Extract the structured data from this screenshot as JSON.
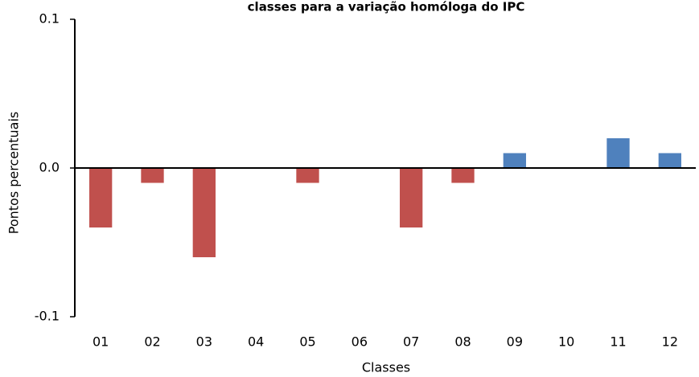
{
  "chart_data": {
    "type": "bar",
    "title": "classes para a variação homóloga do IPC",
    "x_label": "Classes",
    "y_label": "Pontos percentuais",
    "categories": [
      "01",
      "02",
      "03",
      "04",
      "05",
      "06",
      "07",
      "08",
      "09",
      "10",
      "11",
      "12"
    ],
    "values": [
      -0.04,
      -0.01,
      -0.06,
      0,
      -0.01,
      0,
      -0.04,
      -0.01,
      0.01,
      0,
      0.02,
      0.01
    ],
    "colors": [
      "#c0504d",
      "#c0504d",
      "#c0504d",
      "#c0504d",
      "#c0504d",
      "#c0504d",
      "#c0504d",
      "#c0504d",
      "#4f81bd",
      "#4f81bd",
      "#4f81bd",
      "#4f81bd"
    ],
    "ylim": [
      -0.1,
      0.1
    ],
    "yticks": [
      -0.1,
      {
        "value": 0,
        "label": "0.0"
      },
      0.1
    ],
    "grid": false
  }
}
